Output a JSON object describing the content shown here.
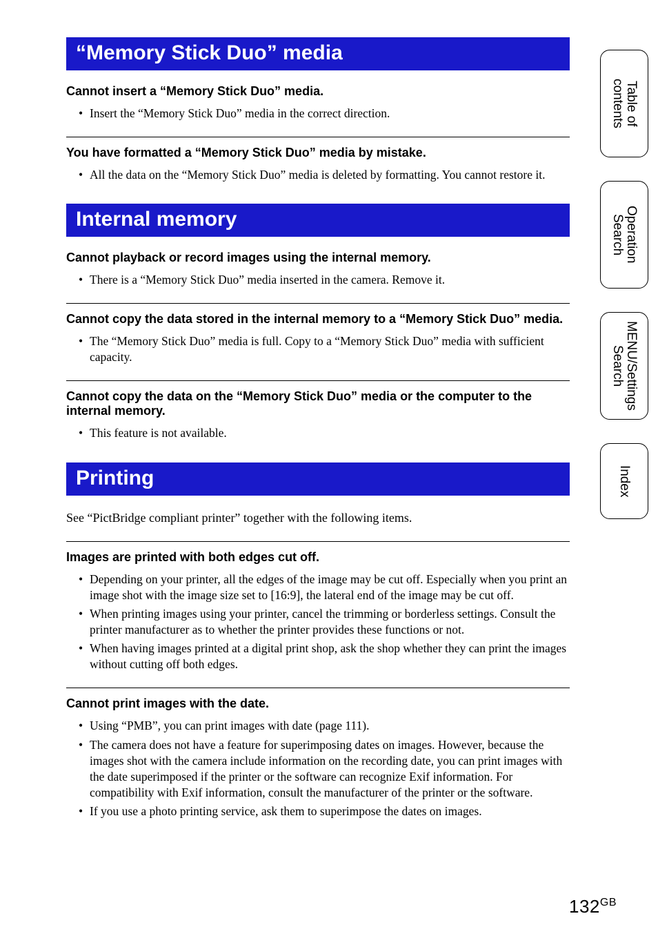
{
  "colors": {
    "section_bar_bg": "#1919c9",
    "section_bar_text": "#ffffff",
    "page_bg": "#ffffff",
    "text": "#000000",
    "rule": "#000000",
    "tab_border": "#000000"
  },
  "typography": {
    "body_font": "Times New Roman",
    "ui_font": "Helvetica",
    "section_title_pt": 30,
    "sub_title_pt": 18,
    "body_pt": 17.5,
    "tab_pt": 19,
    "footer_pt": 26
  },
  "tabs": [
    {
      "label": "Table of\ncontents"
    },
    {
      "label": "Operation\nSearch"
    },
    {
      "label": "MENU/Settings\nSearch"
    },
    {
      "label": "Index"
    }
  ],
  "sections": {
    "memoryStick": {
      "title": "“Memory Stick Duo” media",
      "items": [
        {
          "heading": "Cannot insert a “Memory Stick Duo” media.",
          "bullets": [
            "Insert the “Memory Stick Duo” media in the correct direction."
          ]
        },
        {
          "heading": "You have formatted a “Memory Stick Duo” media by mistake.",
          "bullets": [
            "All the data on the “Memory Stick Duo” media is deleted by formatting. You cannot restore it."
          ]
        }
      ]
    },
    "internalMemory": {
      "title": "Internal memory",
      "items": [
        {
          "heading": "Cannot playback or record images using the internal memory.",
          "bullets": [
            "There is a “Memory Stick Duo” media inserted in the camera. Remove it."
          ]
        },
        {
          "heading": "Cannot copy the data stored in the internal memory to a “Memory Stick Duo” media.",
          "bullets": [
            "The “Memory Stick Duo” media is full. Copy to a “Memory Stick Duo” media with sufficient capacity."
          ]
        },
        {
          "heading": "Cannot copy the data on the “Memory Stick Duo” media or the computer to the internal memory.",
          "bullets": [
            "This feature is not available."
          ]
        }
      ]
    },
    "printing": {
      "title": "Printing",
      "intro": "See “PictBridge compliant printer” together with the following items.",
      "items": [
        {
          "heading": "Images are printed with both edges cut off.",
          "bullets": [
            "Depending on your printer, all the edges of the image may be cut off. Especially when you print an image shot with the image size set to [16:9], the lateral end of the image may be cut off.",
            "When printing images using your printer, cancel the trimming or borderless settings. Consult the printer manufacturer as to whether the printer provides these functions or not.",
            "When having images printed at a digital print shop, ask the shop whether they can print the images without cutting off both edges."
          ]
        },
        {
          "heading": "Cannot print images with the date.",
          "bullets": [
            "Using “PMB”, you can print images with date (page 111).",
            "The camera does not have a feature for superimposing dates on images. However, because the images shot with the camera include information on the recording date, you can print images with the date superimposed if the printer or the software can recognize Exif information. For compatibility with Exif information, consult the manufacturer of the printer or the software.",
            "If you use a photo printing service, ask them to superimpose the dates on images."
          ]
        }
      ]
    }
  },
  "footer": {
    "page": "132",
    "suffix": "GB"
  }
}
